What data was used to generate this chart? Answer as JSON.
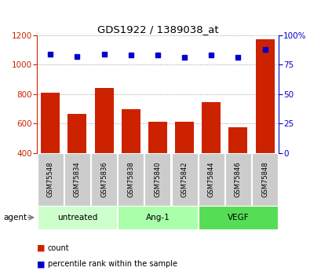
{
  "title": "GDS1922 / 1389038_at",
  "categories": [
    "GSM75548",
    "GSM75834",
    "GSM75836",
    "GSM75838",
    "GSM75840",
    "GSM75842",
    "GSM75844",
    "GSM75846",
    "GSM75848"
  ],
  "counts": [
    808,
    668,
    840,
    700,
    613,
    613,
    748,
    578,
    1175
  ],
  "percentiles": [
    84,
    82,
    84,
    83,
    83,
    81,
    83,
    81,
    88
  ],
  "ylim_left": [
    400,
    1200
  ],
  "ylim_right": [
    0,
    100
  ],
  "yticks_left": [
    400,
    600,
    800,
    1000,
    1200
  ],
  "yticks_right": [
    0,
    25,
    50,
    75,
    100
  ],
  "bar_color": "#cc2200",
  "dot_color": "#0000cc",
  "groups": [
    {
      "label": "untreated",
      "start": 0,
      "end": 3,
      "color": "#ccffcc"
    },
    {
      "label": "Ang-1",
      "start": 3,
      "end": 6,
      "color": "#aaffaa"
    },
    {
      "label": "VEGF",
      "start": 6,
      "end": 9,
      "color": "#55dd55"
    }
  ],
  "tick_bg_color": "#cccccc",
  "legend_count_color": "#cc2200",
  "legend_dot_color": "#0000cc",
  "grid_color": "#888888",
  "agent_label": "agent"
}
